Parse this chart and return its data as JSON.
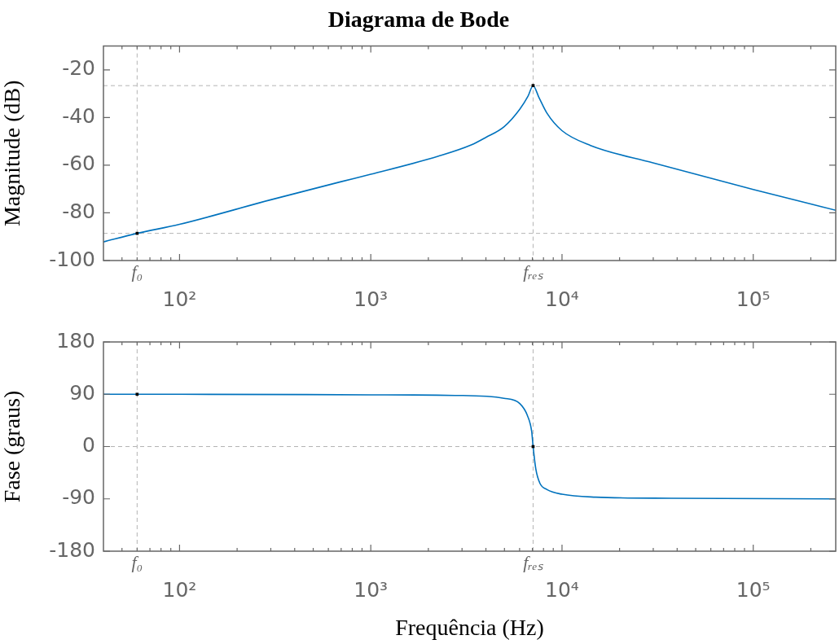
{
  "chart_data": [
    {
      "type": "line",
      "title": "Diagrama de Bode",
      "ylabel": "Magnitude (dB)",
      "log": "x",
      "grid": false,
      "legend": false,
      "line_style": "solid",
      "xlim": [
        40,
        270000
      ],
      "xticks": [
        {
          "value": 50,
          "label": null
        },
        {
          "value": 60,
          "label": null
        },
        {
          "value": 70,
          "label": null
        },
        {
          "value": 80,
          "label": null
        },
        {
          "value": 90,
          "label": null
        },
        {
          "value": 100,
          "label": "10²"
        },
        {
          "value": 200,
          "label": null
        },
        {
          "value": 300,
          "label": null
        },
        {
          "value": 400,
          "label": null
        },
        {
          "value": 500,
          "label": null
        },
        {
          "value": 600,
          "label": null
        },
        {
          "value": 700,
          "label": null
        },
        {
          "value": 800,
          "label": null
        },
        {
          "value": 900,
          "label": null
        },
        {
          "value": 1000,
          "label": "10³"
        },
        {
          "value": 2000,
          "label": null
        },
        {
          "value": 3000,
          "label": null
        },
        {
          "value": 4000,
          "label": null
        },
        {
          "value": 5000,
          "label": null
        },
        {
          "value": 6000,
          "label": null
        },
        {
          "value": 7000,
          "label": null
        },
        {
          "value": 8000,
          "label": null
        },
        {
          "value": 9000,
          "label": null
        },
        {
          "value": 10000,
          "label": "10⁴"
        },
        {
          "value": 20000,
          "label": null
        },
        {
          "value": 30000,
          "label": null
        },
        {
          "value": 40000,
          "label": null
        },
        {
          "value": 50000,
          "label": null
        },
        {
          "value": 60000,
          "label": null
        },
        {
          "value": 70000,
          "label": null
        },
        {
          "value": 80000,
          "label": null
        },
        {
          "value": 90000,
          "label": null
        },
        {
          "value": 100000,
          "label": "10⁵"
        },
        {
          "value": 200000,
          "label": null
        }
      ],
      "ylim": [
        -100,
        -10
      ],
      "yticks": [
        -100,
        -80,
        -60,
        -40,
        -20
      ],
      "series": [
        {
          "color": "#0072bd",
          "x": [
            40,
            60,
            100,
            300,
            700,
            1000,
            2260,
            3350,
            4000,
            4980,
            6010,
            6640,
            7060,
            7570,
            8350,
            10000,
            14100,
            29900,
            100000,
            270000
          ],
          "values": [
            -92.2,
            -88.6,
            -84.8,
            -74.5,
            -66.9,
            -63.8,
            -56.2,
            -51.5,
            -48.3,
            -43.8,
            -36.5,
            -31.0,
            -26.6,
            -31.5,
            -38.2,
            -45.5,
            -51.7,
            -59.0,
            -70.2,
            -78.9
          ]
        },
        {
          "type": "scatter",
          "marker": "square",
          "color": "#000000",
          "x": [
            60,
            7060
          ],
          "values": [
            -88.6,
            -26.6
          ]
        }
      ],
      "ref_lines": [
        {
          "axis": "x",
          "value": 60,
          "label": "f₀",
          "color": "#b4b4b4",
          "line_style": "dashed"
        },
        {
          "axis": "x",
          "value": 7060,
          "label": "fᵣₑₛ",
          "color": "#b4b4b4",
          "line_style": "dashed"
        },
        {
          "axis": "y",
          "value": -88.6,
          "color": "#b4b4b4",
          "line_style": "dashed"
        },
        {
          "axis": "y",
          "value": -26.6,
          "color": "#b4b4b4",
          "line_style": "dashed"
        }
      ]
    },
    {
      "type": "line",
      "xlabel": "Frequência (Hz)",
      "ylabel": "Fase (graus)",
      "log": "x",
      "grid": false,
      "legend": false,
      "line_style": "solid",
      "xlim": [
        40,
        270000
      ],
      "xticks": [
        {
          "value": 50,
          "label": null
        },
        {
          "value": 60,
          "label": null
        },
        {
          "value": 70,
          "label": null
        },
        {
          "value": 80,
          "label": null
        },
        {
          "value": 90,
          "label": null
        },
        {
          "value": 100,
          "label": "10²"
        },
        {
          "value": 200,
          "label": null
        },
        {
          "value": 300,
          "label": null
        },
        {
          "value": 400,
          "label": null
        },
        {
          "value": 500,
          "label": null
        },
        {
          "value": 600,
          "label": null
        },
        {
          "value": 700,
          "label": null
        },
        {
          "value": 800,
          "label": null
        },
        {
          "value": 900,
          "label": null
        },
        {
          "value": 1000,
          "label": "10³"
        },
        {
          "value": 2000,
          "label": null
        },
        {
          "value": 3000,
          "label": null
        },
        {
          "value": 4000,
          "label": null
        },
        {
          "value": 5000,
          "label": null
        },
        {
          "value": 6000,
          "label": null
        },
        {
          "value": 7000,
          "label": null
        },
        {
          "value": 8000,
          "label": null
        },
        {
          "value": 9000,
          "label": null
        },
        {
          "value": 10000,
          "label": "10⁴"
        },
        {
          "value": 20000,
          "label": null
        },
        {
          "value": 30000,
          "label": null
        },
        {
          "value": 40000,
          "label": null
        },
        {
          "value": 50000,
          "label": null
        },
        {
          "value": 60000,
          "label": null
        },
        {
          "value": 70000,
          "label": null
        },
        {
          "value": 80000,
          "label": null
        },
        {
          "value": 90000,
          "label": null
        },
        {
          "value": 100000,
          "label": "10⁵"
        },
        {
          "value": 200000,
          "label": null
        }
      ],
      "ylim": [
        -180,
        180
      ],
      "yticks": [
        -180,
        -90,
        0,
        90,
        180
      ],
      "series": [
        {
          "color": "#0072bd",
          "x": [
            40,
            100,
            1000,
            2760,
            4970,
            6010,
            6600,
            6940,
            7060,
            7290,
            7660,
            8350,
            10000,
            15000,
            37300,
            270000
          ],
          "values": [
            90,
            90,
            89,
            88,
            83,
            74,
            53,
            26,
            0,
            -38,
            -63,
            -74,
            -82,
            -87,
            -89,
            -90
          ]
        },
        {
          "type": "scatter",
          "marker": "square",
          "color": "#000000",
          "x": [
            60,
            7060
          ],
          "values": [
            90,
            0
          ]
        }
      ],
      "ref_lines": [
        {
          "axis": "x",
          "value": 60,
          "label": "f₀",
          "color": "#b4b4b4",
          "line_style": "dashed"
        },
        {
          "axis": "x",
          "value": 7060,
          "label": "fᵣₑₛ",
          "color": "#b4b4b4",
          "line_style": "dashed"
        },
        {
          "axis": "y",
          "value": 0,
          "color": "#b4b4b4",
          "line_style": "dashed"
        }
      ]
    }
  ]
}
